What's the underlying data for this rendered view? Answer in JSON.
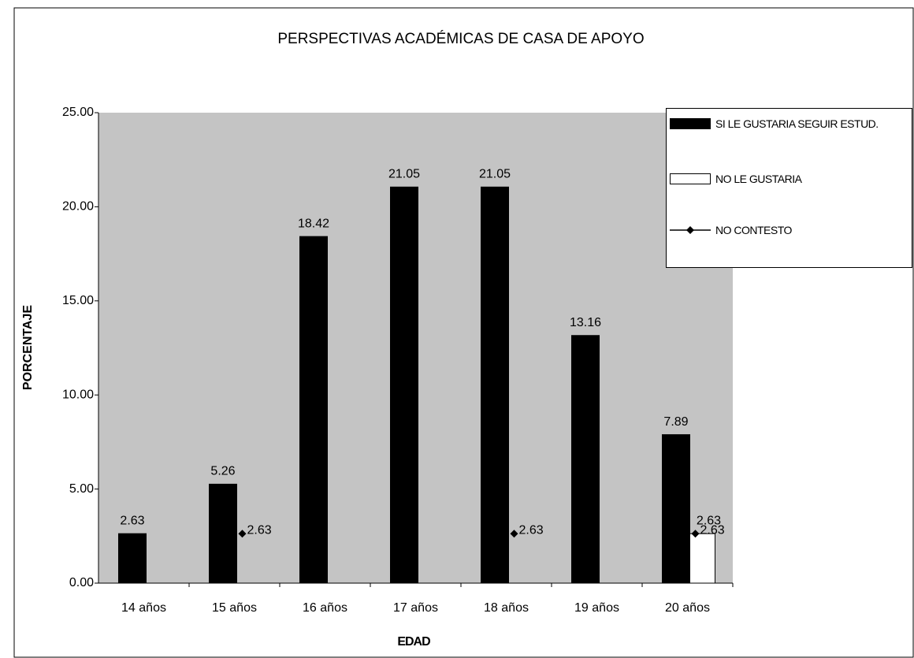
{
  "chart_data": {
    "type": "bar",
    "title": "PERSPECTIVAS ACADÉMICAS DE CASA DE APOYO",
    "xlabel": "EDAD",
    "ylabel": "PORCENTAJE",
    "categories": [
      "14 años",
      "15 años",
      "16 años",
      "17 años",
      "18 años",
      "19 años",
      "20 años"
    ],
    "series": [
      {
        "name": "SI LE GUSTARIA SEGUIR ESTUD.",
        "type": "bar",
        "color": "#000000",
        "values": [
          2.63,
          5.26,
          18.42,
          21.05,
          21.05,
          13.16,
          7.89
        ]
      },
      {
        "name": "NO LE GUSTARIA",
        "type": "bar",
        "color": "#ffffff",
        "values": [
          null,
          null,
          null,
          null,
          null,
          null,
          2.63
        ]
      },
      {
        "name": "NO CONTESTO",
        "type": "line",
        "color": "#000000",
        "values": [
          null,
          2.63,
          null,
          null,
          2.63,
          null,
          2.63
        ]
      }
    ],
    "ylim": [
      0,
      25
    ],
    "yticks": [
      {
        "value": 0,
        "label": "0.00"
      },
      {
        "value": 5,
        "label": "5.00"
      },
      {
        "value": 10,
        "label": "10.00"
      },
      {
        "value": 15,
        "label": "15.00"
      },
      {
        "value": 20,
        "label": "20.00"
      },
      {
        "value": 25,
        "label": "25.00"
      }
    ],
    "legend": "right"
  }
}
